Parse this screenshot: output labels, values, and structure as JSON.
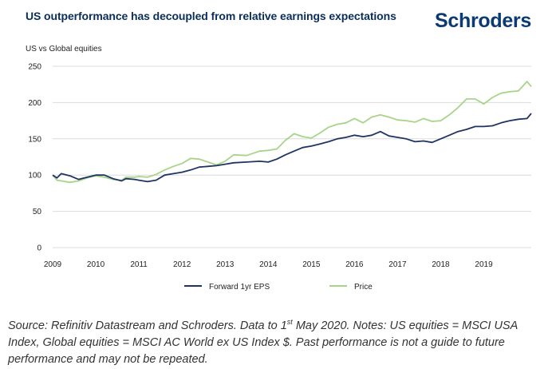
{
  "header": {
    "title": "US outperformance has decoupled from relative earnings expectations",
    "logo": "Schroders"
  },
  "colors": {
    "title": "#0b2d5b",
    "logo": "#0b3a75",
    "eps": "#1f3464",
    "price": "#a8d48a",
    "grid": "#dcdcdc"
  },
  "chart_data": {
    "type": "line",
    "title": "US outperformance has decoupled from relative earnings expectations",
    "ylabel": "US vs Global equities",
    "xlabel": "",
    "ylim": [
      0,
      250
    ],
    "xlim": [
      2009,
      2020.1
    ],
    "yticks": [
      0,
      50,
      100,
      150,
      200,
      250
    ],
    "xticks": [
      2009,
      2010,
      2011,
      2012,
      2013,
      2014,
      2015,
      2016,
      2017,
      2018,
      2019
    ],
    "grid": true,
    "legend_position": "bottom",
    "series": [
      {
        "name": "Forward 1yr EPS",
        "color": "#1f3464",
        "x": [
          2009.0,
          2009.1,
          2009.2,
          2009.4,
          2009.6,
          2009.8,
          2010.0,
          2010.2,
          2010.4,
          2010.6,
          2010.7,
          2010.9,
          2011.0,
          2011.2,
          2011.4,
          2011.6,
          2011.8,
          2012.0,
          2012.2,
          2012.4,
          2012.6,
          2012.8,
          2013.0,
          2013.2,
          2013.5,
          2013.8,
          2014.0,
          2014.2,
          2014.4,
          2014.6,
          2014.8,
          2015.0,
          2015.2,
          2015.4,
          2015.6,
          2015.8,
          2016.0,
          2016.2,
          2016.4,
          2016.6,
          2016.8,
          2017.0,
          2017.2,
          2017.4,
          2017.6,
          2017.8,
          2018.0,
          2018.2,
          2018.4,
          2018.6,
          2018.8,
          2019.0,
          2019.2,
          2019.4,
          2019.6,
          2019.8,
          2020.0,
          2020.1
        ],
        "values": [
          100,
          96,
          102,
          99,
          94,
          97,
          100,
          100,
          95,
          92,
          95,
          94,
          93,
          91,
          93,
          100,
          102,
          104,
          107,
          111,
          112,
          113,
          115,
          117,
          118,
          119,
          118,
          122,
          128,
          133,
          138,
          140,
          143,
          146,
          150,
          152,
          155,
          153,
          155,
          160,
          154,
          152,
          150,
          146,
          147,
          145,
          150,
          155,
          160,
          163,
          167,
          167,
          168,
          172,
          175,
          177,
          178,
          185
        ]
      },
      {
        "name": "Price",
        "color": "#a8d48a",
        "x": [
          2009.0,
          2009.1,
          2009.2,
          2009.4,
          2009.6,
          2009.8,
          2010.0,
          2010.2,
          2010.4,
          2010.6,
          2010.7,
          2010.9,
          2011.0,
          2011.2,
          2011.4,
          2011.6,
          2011.8,
          2012.0,
          2012.2,
          2012.4,
          2012.6,
          2012.8,
          2013.0,
          2013.2,
          2013.5,
          2013.8,
          2014.0,
          2014.2,
          2014.4,
          2014.6,
          2014.8,
          2015.0,
          2015.2,
          2015.4,
          2015.6,
          2015.8,
          2016.0,
          2016.2,
          2016.4,
          2016.6,
          2016.8,
          2017.0,
          2017.2,
          2017.4,
          2017.6,
          2017.8,
          2018.0,
          2018.2,
          2018.4,
          2018.6,
          2018.8,
          2019.0,
          2019.2,
          2019.4,
          2019.6,
          2019.8,
          2020.0,
          2020.1
        ],
        "values": [
          100,
          93,
          92,
          90,
          92,
          96,
          99,
          97,
          94,
          93,
          97,
          97,
          98,
          97,
          101,
          107,
          112,
          116,
          123,
          122,
          118,
          114,
          119,
          128,
          127,
          133,
          134,
          136,
          148,
          157,
          153,
          151,
          158,
          166,
          170,
          172,
          178,
          172,
          180,
          183,
          180,
          176,
          175,
          173,
          178,
          174,
          175,
          183,
          193,
          205,
          205,
          198,
          207,
          213,
          215,
          216,
          229,
          222
        ]
      }
    ]
  },
  "legend": {
    "eps_label": "Forward 1yr EPS",
    "price_label": "Price"
  },
  "footnote": {
    "part1": "Source: Refinitiv Datastream and Schroders. Data to 1",
    "superscript": "st",
    "part2": " May 2020. Notes: US equities = MSCI USA Index, Global equities = MSCI AC World ex US Index $. Past performance is not a guide to future performance and may not be repeated."
  }
}
